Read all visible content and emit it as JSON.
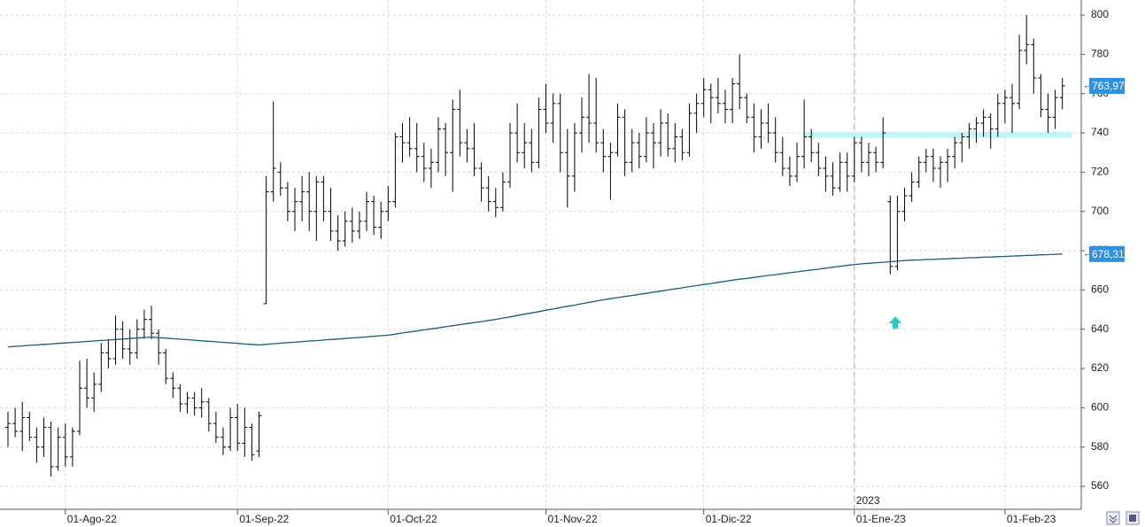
{
  "chart_data": {
    "type": "ohlc",
    "categories": [
      null,
      null,
      null,
      null,
      null,
      null,
      null,
      null,
      "01-Ago-22",
      null,
      null,
      null,
      null,
      null,
      null,
      null,
      null,
      null,
      null,
      null,
      null,
      null,
      null,
      null,
      null,
      null,
      null,
      null,
      null,
      null,
      null,
      null,
      "01-Sep-22",
      null,
      null,
      null,
      null,
      null,
      null,
      null,
      null,
      null,
      null,
      null,
      null,
      null,
      null,
      null,
      null,
      null,
      null,
      null,
      null,
      "01-Oct-22",
      null,
      null,
      null,
      null,
      null,
      null,
      null,
      null,
      null,
      null,
      null,
      null,
      null,
      null,
      null,
      null,
      null,
      null,
      null,
      null,
      null,
      "01-Nov-22",
      null,
      null,
      null,
      null,
      null,
      null,
      null,
      null,
      null,
      null,
      null,
      null,
      null,
      null,
      null,
      null,
      null,
      null,
      null,
      null,
      null,
      "01-Dic-22",
      null,
      null,
      null,
      null,
      null,
      null,
      null,
      null,
      null,
      null,
      null,
      null,
      null,
      null,
      null,
      null,
      null,
      null,
      null,
      null,
      "01-Ene-23",
      null,
      null,
      null,
      null,
      null,
      null,
      null,
      null,
      null,
      null,
      null,
      null,
      null,
      null,
      null,
      null,
      null,
      null,
      null,
      null,
      "01-Feb-23",
      null,
      null,
      null,
      null,
      null,
      null,
      null,
      null
    ],
    "ohlc": [
      [
        590,
        598,
        580,
        592
      ],
      [
        592,
        600,
        585,
        588
      ],
      [
        588,
        603,
        578,
        595
      ],
      [
        595,
        598,
        583,
        585
      ],
      [
        585,
        590,
        572,
        580
      ],
      [
        580,
        595,
        575,
        590
      ],
      [
        590,
        593,
        565,
        570
      ],
      [
        570,
        590,
        568,
        585
      ],
      [
        585,
        592,
        570,
        575
      ],
      [
        575,
        590,
        570,
        588
      ],
      [
        588,
        624,
        586,
        610
      ],
      [
        610,
        625,
        600,
        605
      ],
      [
        605,
        618,
        598,
        612
      ],
      [
        612,
        633,
        608,
        628
      ],
      [
        628,
        635,
        620,
        625
      ],
      [
        625,
        647,
        622,
        640
      ],
      [
        640,
        644,
        625,
        630
      ],
      [
        630,
        640,
        622,
        628
      ],
      [
        628,
        645,
        625,
        640
      ],
      [
        640,
        650,
        635,
        645
      ],
      [
        645,
        652,
        635,
        638
      ],
      [
        638,
        640,
        622,
        628
      ],
      [
        628,
        630,
        612,
        615
      ],
      [
        615,
        618,
        605,
        610
      ],
      [
        610,
        612,
        598,
        602
      ],
      [
        602,
        608,
        597,
        605
      ],
      [
        605,
        608,
        596,
        600
      ],
      [
        600,
        610,
        595,
        603
      ],
      [
        603,
        605,
        588,
        592
      ],
      [
        592,
        598,
        582,
        585
      ],
      [
        585,
        590,
        576,
        580
      ],
      [
        580,
        600,
        578,
        595
      ],
      [
        595,
        602,
        578,
        582
      ],
      [
        582,
        600,
        575,
        590
      ],
      [
        590,
        592,
        573,
        576
      ],
      [
        578,
        598,
        575,
        596
      ],
      [
        653,
        718,
        653,
        710
      ],
      [
        710,
        756,
        705,
        722
      ],
      [
        720,
        725,
        708,
        712
      ],
      [
        712,
        715,
        695,
        700
      ],
      [
        700,
        712,
        690,
        705
      ],
      [
        705,
        718,
        695,
        710
      ],
      [
        710,
        720,
        690,
        700
      ],
      [
        700,
        718,
        685,
        715
      ],
      [
        715,
        718,
        695,
        700
      ],
      [
        700,
        712,
        685,
        690
      ],
      [
        690,
        698,
        680,
        685
      ],
      [
        685,
        700,
        682,
        695
      ],
      [
        695,
        702,
        684,
        690
      ],
      [
        690,
        700,
        686,
        695
      ],
      [
        695,
        710,
        690,
        705
      ],
      [
        705,
        708,
        688,
        692
      ],
      [
        692,
        705,
        686,
        700
      ],
      [
        700,
        713,
        695,
        705
      ],
      [
        705,
        740,
        702,
        738
      ],
      [
        738,
        745,
        725,
        735
      ],
      [
        735,
        748,
        728,
        732
      ],
      [
        732,
        745,
        720,
        728
      ],
      [
        728,
        735,
        715,
        722
      ],
      [
        722,
        732,
        712,
        725
      ],
      [
        725,
        748,
        720,
        742
      ],
      [
        742,
        745,
        718,
        730
      ],
      [
        730,
        757,
        710,
        752
      ],
      [
        752,
        762,
        728,
        735
      ],
      [
        735,
        742,
        725,
        732
      ],
      [
        732,
        745,
        718,
        722
      ],
      [
        722,
        725,
        705,
        712
      ],
      [
        712,
        718,
        700,
        705
      ],
      [
        705,
        712,
        697,
        702
      ],
      [
        702,
        720,
        700,
        715
      ],
      [
        715,
        745,
        712,
        740
      ],
      [
        740,
        755,
        725,
        730
      ],
      [
        730,
        745,
        722,
        735
      ],
      [
        735,
        742,
        720,
        725
      ],
      [
        725,
        758,
        722,
        752
      ],
      [
        752,
        765,
        740,
        745
      ],
      [
        745,
        760,
        735,
        755
      ],
      [
        755,
        760,
        720,
        730
      ],
      [
        730,
        742,
        702,
        718
      ],
      [
        718,
        745,
        710,
        740
      ],
      [
        740,
        758,
        730,
        748
      ],
      [
        748,
        770,
        735,
        745
      ],
      [
        745,
        768,
        730,
        735
      ],
      [
        735,
        742,
        720,
        728
      ],
      [
        728,
        735,
        706,
        730
      ],
      [
        730,
        755,
        728,
        748
      ],
      [
        748,
        752,
        718,
        725
      ],
      [
        725,
        742,
        720,
        735
      ],
      [
        735,
        740,
        722,
        728
      ],
      [
        728,
        748,
        725,
        740
      ],
      [
        740,
        745,
        722,
        735
      ],
      [
        735,
        752,
        728,
        745
      ],
      [
        745,
        750,
        728,
        732
      ],
      [
        732,
        745,
        725,
        738
      ],
      [
        738,
        742,
        726,
        730
      ],
      [
        730,
        755,
        728,
        750
      ],
      [
        750,
        760,
        740,
        755
      ],
      [
        755,
        768,
        748,
        762
      ],
      [
        762,
        765,
        745,
        758
      ],
      [
        758,
        768,
        750,
        755
      ],
      [
        755,
        762,
        745,
        752
      ],
      [
        752,
        768,
        745,
        765
      ],
      [
        765,
        780,
        752,
        758
      ],
      [
        758,
        760,
        745,
        748
      ],
      [
        748,
        755,
        730,
        738
      ],
      [
        738,
        752,
        732,
        745
      ],
      [
        745,
        755,
        735,
        740
      ],
      [
        740,
        748,
        725,
        730
      ],
      [
        730,
        738,
        718,
        722
      ],
      [
        722,
        728,
        713,
        718
      ],
      [
        718,
        735,
        715,
        728
      ],
      [
        728,
        757,
        722,
        738
      ],
      [
        738,
        742,
        725,
        730
      ],
      [
        730,
        735,
        718,
        722
      ],
      [
        722,
        728,
        710,
        718
      ],
      [
        718,
        725,
        708,
        712
      ],
      [
        712,
        730,
        710,
        725
      ],
      [
        725,
        730,
        710,
        718
      ],
      [
        718,
        738,
        715,
        735
      ],
      [
        735,
        738,
        720,
        725
      ],
      [
        725,
        735,
        718,
        730
      ],
      [
        730,
        733,
        720,
        725
      ],
      [
        725,
        748,
        722,
        740
      ],
      [
        705,
        708,
        668,
        672
      ],
      [
        672,
        708,
        670,
        700
      ],
      [
        700,
        712,
        695,
        708
      ],
      [
        708,
        720,
        705,
        715
      ],
      [
        715,
        728,
        712,
        725
      ],
      [
        725,
        732,
        720,
        728
      ],
      [
        728,
        732,
        715,
        722
      ],
      [
        722,
        728,
        712,
        725
      ],
      [
        725,
        732,
        715,
        728
      ],
      [
        728,
        738,
        722,
        735
      ],
      [
        735,
        740,
        725,
        738
      ],
      [
        738,
        745,
        732,
        742
      ],
      [
        742,
        748,
        735,
        745
      ],
      [
        745,
        752,
        738,
        748
      ],
      [
        748,
        750,
        732,
        742
      ],
      [
        742,
        760,
        738,
        755
      ],
      [
        755,
        762,
        745,
        758
      ],
      [
        758,
        765,
        740,
        755
      ],
      [
        755,
        790,
        752,
        782
      ],
      [
        782,
        800,
        775,
        785
      ],
      [
        785,
        788,
        760,
        768
      ],
      [
        768,
        770,
        748,
        752
      ],
      [
        752,
        760,
        740,
        748
      ],
      [
        748,
        762,
        742,
        758
      ],
      [
        758,
        768,
        752,
        763.97
      ]
    ],
    "color": "#000000",
    "close_label": "763,97",
    "ma_color": "#1d5a78",
    "ma_label": "678,31",
    "ma_values": [
      631,
      631.3,
      631.5,
      631.8,
      632,
      632.3,
      632.5,
      632.8,
      633,
      633.3,
      633.5,
      633.8,
      634,
      634.3,
      634.5,
      634.8,
      635,
      635.3,
      635.5,
      635.8,
      636,
      635.7,
      635.5,
      635.2,
      634.9,
      634.7,
      634.4,
      634.1,
      633.9,
      633.6,
      633.3,
      633.1,
      632.8,
      632.5,
      632.3,
      632,
      632.3,
      632.6,
      632.9,
      633.2,
      633.4,
      633.7,
      634,
      634.2,
      634.5,
      634.8,
      635,
      635.3,
      635.6,
      635.8,
      636.1,
      636.4,
      636.7,
      637,
      637.5,
      638.1,
      638.6,
      639.1,
      639.7,
      640.2,
      640.7,
      641.3,
      641.8,
      642.3,
      642.9,
      643.4,
      643.9,
      644.5,
      645,
      645.7,
      646.3,
      647,
      647.7,
      648.3,
      649,
      649.7,
      650.3,
      651,
      651.7,
      652.3,
      653,
      653.7,
      654.3,
      655,
      655.6,
      656.1,
      656.7,
      657.2,
      657.8,
      658.3,
      658.9,
      659.4,
      660,
      660.6,
      661.1,
      661.7,
      662.2,
      662.8,
      663.3,
      663.9,
      664.4,
      665,
      665.5,
      665.9,
      666.4,
      666.9,
      667.4,
      667.8,
      668.3,
      668.8,
      669.2,
      669.7,
      670.2,
      670.6,
      671.1,
      671.6,
      672.1,
      672.5,
      673,
      673.3,
      673.6,
      673.9,
      674.1,
      674.4,
      674.7,
      675,
      675.2,
      675.3,
      675.5,
      675.6,
      675.8,
      675.9,
      676.1,
      676.2,
      676.4,
      676.5,
      676.7,
      676.8,
      677,
      677.1,
      677.3,
      677.4,
      677.6,
      677.7,
      677.9,
      678,
      678.2,
      678.31
    ],
    "hline": {
      "value": 739,
      "color": "#c2f3f5"
    },
    "year_label": "2023",
    "ylim": [
      548.3,
      807.7
    ],
    "yticks": [
      560,
      580,
      600,
      620,
      640,
      660,
      680,
      700,
      720,
      740,
      760,
      780,
      800
    ],
    "grid": true
  }
}
